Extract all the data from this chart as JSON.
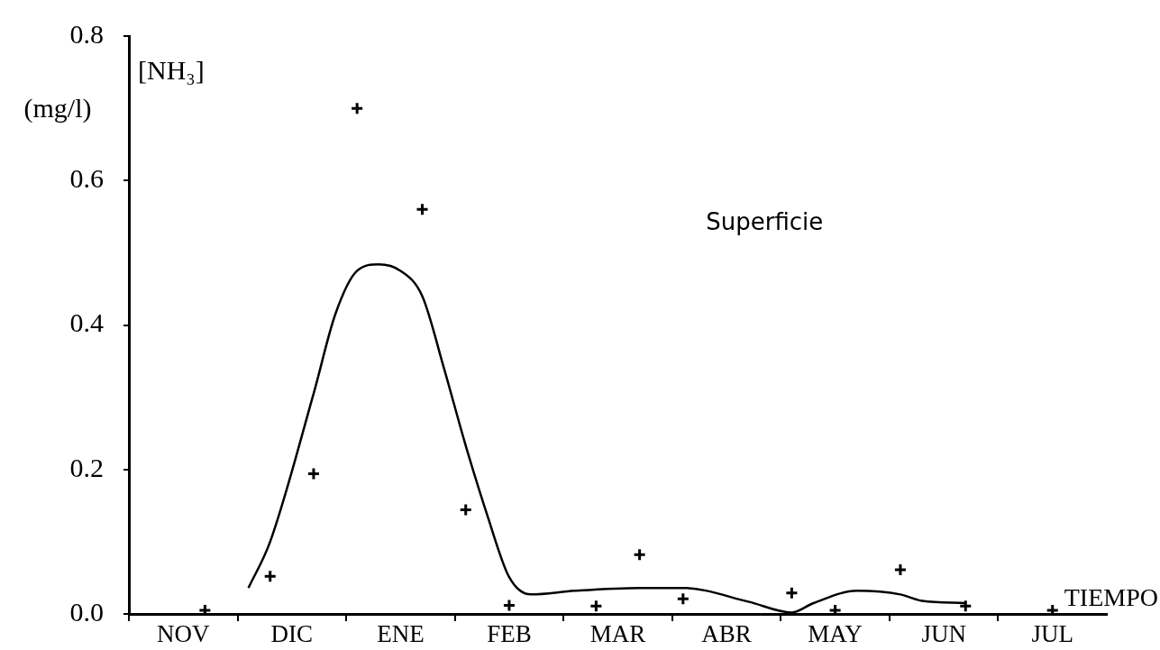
{
  "chart_data": {
    "type": "scatter",
    "ylabel": "[NH₃] (mg/l)",
    "xlabel": "TIEMPO",
    "annotations": [
      "Superficie"
    ],
    "categories": [
      null,
      null,
      "NOV",
      null,
      null,
      null,
      null,
      "DIC",
      null,
      null,
      null,
      null,
      "ENE",
      null,
      null,
      null,
      null,
      "FEB",
      null,
      null,
      null,
      null,
      "MAR",
      null,
      null,
      null,
      null,
      "ABR",
      null,
      null,
      null,
      null,
      "MAY",
      null,
      null,
      null,
      null,
      "JUN",
      null,
      null,
      null,
      null,
      "JUL",
      null,
      null
    ],
    "ylim": [
      0,
      0.8
    ],
    "yticks": [
      {
        "value": 0,
        "label": "0.0"
      },
      {
        "value": 0.2,
        "label": "0.2"
      },
      {
        "value": 0.4,
        "label": "0.4"
      },
      {
        "value": 0.6,
        "label": "0.6"
      },
      {
        "value": 0.8,
        "label": "0.8"
      }
    ],
    "grid": false,
    "legend": false,
    "series": [
      {
        "color": "#000000",
        "marker": "cross",
        "values": [
          null,
          null,
          null,
          0.005,
          null,
          null,
          0.052,
          null,
          0.194,
          null,
          0.7,
          null,
          null,
          0.56,
          null,
          0.144,
          null,
          0.012,
          null,
          null,
          null,
          0.011,
          null,
          0.082,
          null,
          0.021,
          null,
          null,
          null,
          null,
          0.029,
          null,
          0.005,
          null,
          null,
          0.061,
          null,
          null,
          0.011,
          null,
          null,
          null,
          0.005,
          null,
          null
        ]
      },
      {
        "type": "line",
        "color": "#000000",
        "marker": "none",
        "line_style": "solid",
        "values": [
          null,
          null,
          null,
          null,
          null,
          0.036,
          0.1,
          null,
          0.305,
          0.415,
          0.475,
          0.484,
          0.475,
          0.44,
          0.34,
          0.233,
          0.136,
          0.051,
          0.027,
          null,
          0.032,
          null,
          null,
          0.036,
          null,
          0.036,
          null,
          null,
          0.017,
          null,
          0.002,
          0.015,
          null,
          0.032,
          null,
          0.027,
          0.018,
          null,
          0.015,
          null,
          null,
          null,
          null,
          null,
          null
        ]
      }
    ]
  }
}
